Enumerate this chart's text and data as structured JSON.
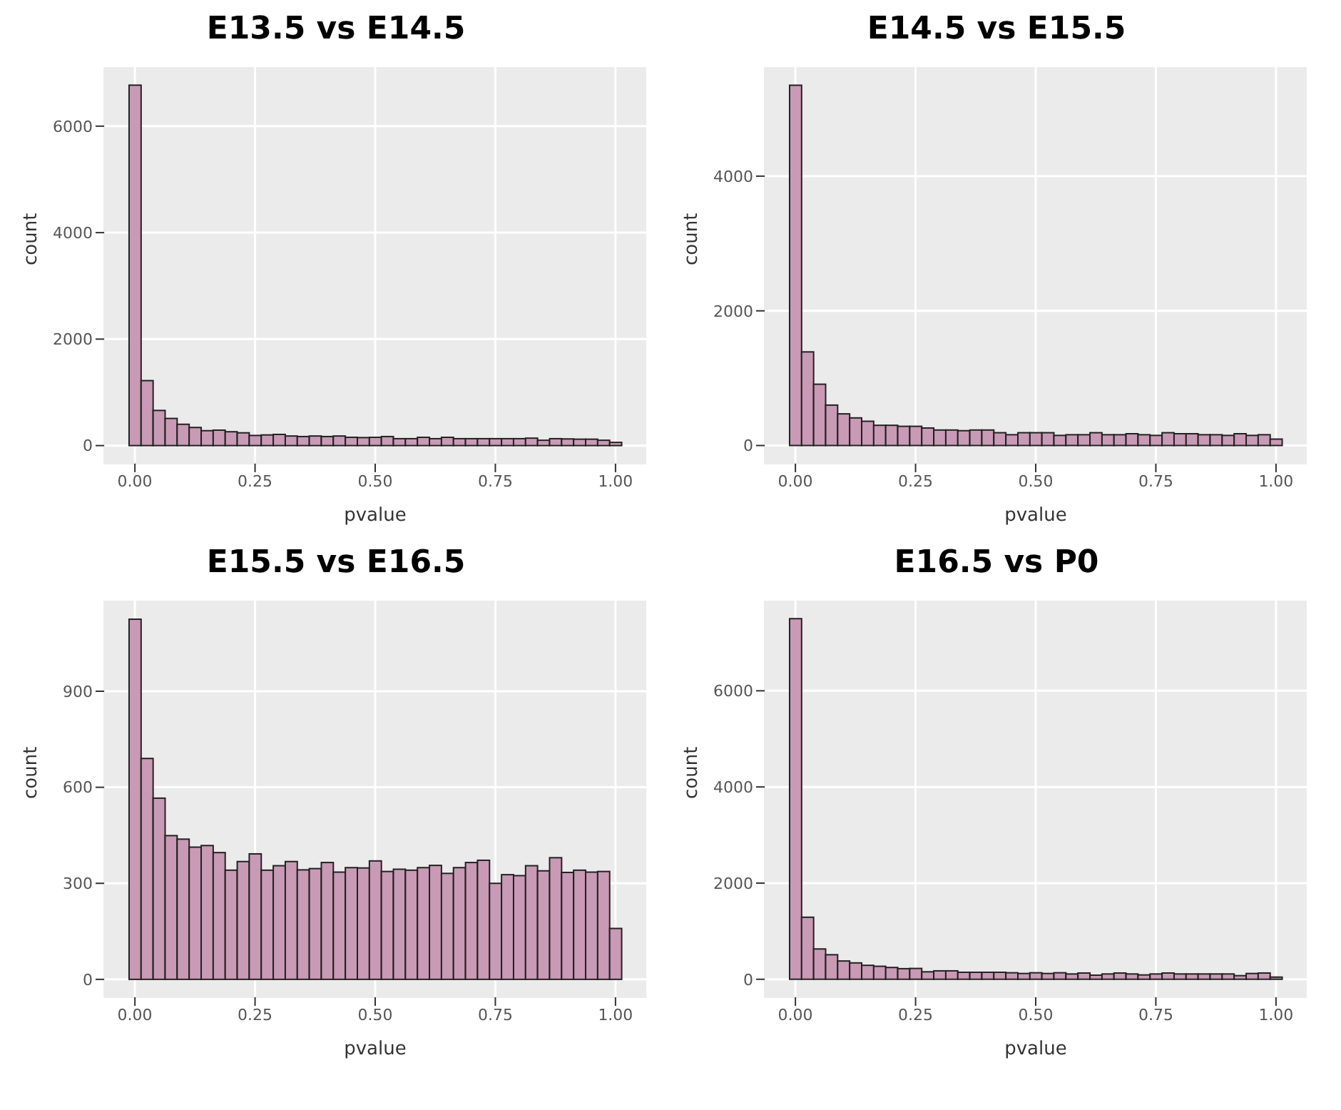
{
  "chart_data": [
    {
      "type": "histogram",
      "title": "E13.5 vs E14.5",
      "xlabel": "pvalue",
      "ylabel": "count",
      "color": "#c99ab5",
      "grid": true,
      "bins": [
        -0.0125,
        0.0125,
        0.0375,
        0.0625,
        0.0875,
        0.1125,
        0.1375,
        0.1625,
        0.1875,
        0.2125,
        0.2375,
        0.2625,
        0.2875,
        0.3125,
        0.3375,
        0.3625,
        0.3875,
        0.4125,
        0.4375,
        0.4625,
        0.4875,
        0.5125,
        0.5375,
        0.5625,
        0.5875,
        0.6125,
        0.6375,
        0.6625,
        0.6875,
        0.7125,
        0.7375,
        0.7625,
        0.7875,
        0.8125,
        0.8375,
        0.8625,
        0.8875,
        0.9125,
        0.9375,
        0.9625,
        0.9875,
        1.0125
      ],
      "values": [
        6770,
        1220,
        660,
        510,
        400,
        340,
        280,
        290,
        260,
        240,
        190,
        200,
        210,
        180,
        170,
        180,
        170,
        180,
        155,
        150,
        155,
        170,
        130,
        130,
        155,
        130,
        155,
        130,
        130,
        130,
        130,
        130,
        130,
        140,
        100,
        130,
        125,
        120,
        120,
        100,
        60
      ],
      "xlim": [
        -0.064,
        1.064
      ],
      "xticks": [
        {
          "value": 0,
          "label": "0.00"
        },
        {
          "value": 0.25,
          "label": "0.25"
        },
        {
          "value": 0.5,
          "label": "0.50"
        },
        {
          "value": 0.75,
          "label": "0.75"
        },
        {
          "value": 1,
          "label": "1.00"
        }
      ],
      "ylim": [
        -340,
        7110
      ],
      "yticks": [
        0,
        2000,
        4000,
        6000
      ]
    },
    {
      "type": "histogram",
      "title": "E14.5 vs E15.5",
      "xlabel": "pvalue",
      "ylabel": "count",
      "color": "#c99ab5",
      "grid": true,
      "bins": [
        -0.0125,
        0.0125,
        0.0375,
        0.0625,
        0.0875,
        0.1125,
        0.1375,
        0.1625,
        0.1875,
        0.2125,
        0.2375,
        0.2625,
        0.2875,
        0.3125,
        0.3375,
        0.3625,
        0.3875,
        0.4125,
        0.4375,
        0.4625,
        0.4875,
        0.5125,
        0.5375,
        0.5625,
        0.5875,
        0.6125,
        0.6375,
        0.6625,
        0.6875,
        0.7125,
        0.7375,
        0.7625,
        0.7875,
        0.8125,
        0.8375,
        0.8625,
        0.8875,
        0.9125,
        0.9375,
        0.9625,
        0.9875,
        1.0125
      ],
      "values": [
        5350,
        1390,
        910,
        600,
        470,
        410,
        360,
        300,
        300,
        285,
        285,
        260,
        230,
        230,
        220,
        230,
        230,
        190,
        160,
        190,
        190,
        190,
        150,
        160,
        160,
        190,
        160,
        160,
        175,
        160,
        150,
        190,
        175,
        175,
        160,
        160,
        150,
        175,
        150,
        160,
        95
      ],
      "xlim": [
        -0.064,
        1.064
      ],
      "xticks": [
        {
          "value": 0,
          "label": "0.00"
        },
        {
          "value": 0.25,
          "label": "0.25"
        },
        {
          "value": 0.5,
          "label": "0.50"
        },
        {
          "value": 0.75,
          "label": "0.75"
        },
        {
          "value": 1,
          "label": "1.00"
        }
      ],
      "ylim": [
        -270,
        5620
      ],
      "yticks": [
        0,
        2000,
        4000
      ]
    },
    {
      "type": "histogram",
      "title": "E15.5 vs E16.5",
      "xlabel": "pvalue",
      "ylabel": "count",
      "color": "#c99ab5",
      "grid": true,
      "bins": [
        -0.0125,
        0.0125,
        0.0375,
        0.0625,
        0.0875,
        0.1125,
        0.1375,
        0.1625,
        0.1875,
        0.2125,
        0.2375,
        0.2625,
        0.2875,
        0.3125,
        0.3375,
        0.3625,
        0.3875,
        0.4125,
        0.4375,
        0.4625,
        0.4875,
        0.5125,
        0.5375,
        0.5625,
        0.5875,
        0.6125,
        0.6375,
        0.6625,
        0.6875,
        0.7125,
        0.7375,
        0.7625,
        0.7875,
        0.8125,
        0.8375,
        0.8625,
        0.8875,
        0.9125,
        0.9375,
        0.9625,
        0.9875,
        1.0125
      ],
      "values": [
        1125,
        690,
        566,
        449,
        438,
        413,
        418,
        396,
        341,
        368,
        392,
        341,
        355,
        368,
        342,
        346,
        365,
        335,
        349,
        348,
        370,
        337,
        344,
        341,
        349,
        356,
        331,
        349,
        365,
        372,
        300,
        327,
        324,
        355,
        339,
        380,
        334,
        341,
        335,
        337,
        159
      ],
      "xlim": [
        -0.064,
        1.064
      ],
      "xticks": [
        {
          "value": 0,
          "label": "0.00"
        },
        {
          "value": 0.25,
          "label": "0.25"
        },
        {
          "value": 0.5,
          "label": "0.50"
        },
        {
          "value": 0.75,
          "label": "0.75"
        },
        {
          "value": 1,
          "label": "1.00"
        }
      ],
      "ylim": [
        -56,
        1183
      ],
      "yticks": [
        0,
        300,
        600,
        900
      ]
    },
    {
      "type": "histogram",
      "title": "E16.5 vs P0",
      "xlabel": "pvalue",
      "ylabel": "count",
      "color": "#c99ab5",
      "grid": true,
      "bins": [
        -0.0125,
        0.0125,
        0.0375,
        0.0625,
        0.0875,
        0.1125,
        0.1375,
        0.1625,
        0.1875,
        0.2125,
        0.2375,
        0.2625,
        0.2875,
        0.3125,
        0.3375,
        0.3625,
        0.3875,
        0.4125,
        0.4375,
        0.4625,
        0.4875,
        0.5125,
        0.5375,
        0.5625,
        0.5875,
        0.6125,
        0.6375,
        0.6625,
        0.6875,
        0.7125,
        0.7375,
        0.7625,
        0.7875,
        0.8125,
        0.8375,
        0.8625,
        0.8875,
        0.9125,
        0.9375,
        0.9625,
        0.9875,
        1.0125
      ],
      "values": [
        7500,
        1290,
        630,
        510,
        380,
        340,
        290,
        270,
        245,
        220,
        225,
        155,
        175,
        175,
        145,
        145,
        145,
        145,
        135,
        120,
        135,
        120,
        135,
        110,
        130,
        85,
        110,
        130,
        110,
        90,
        110,
        130,
        110,
        110,
        110,
        110,
        110,
        75,
        120,
        130,
        45
      ],
      "xlim": [
        -0.064,
        1.064
      ],
      "xticks": [
        {
          "value": 0,
          "label": "0.00"
        },
        {
          "value": 0.25,
          "label": "0.25"
        },
        {
          "value": 0.5,
          "label": "0.50"
        },
        {
          "value": 0.75,
          "label": "0.75"
        },
        {
          "value": 1,
          "label": "1.00"
        }
      ],
      "ylim": [
        -375,
        7875
      ],
      "yticks": [
        0,
        2000,
        4000,
        6000
      ]
    }
  ]
}
